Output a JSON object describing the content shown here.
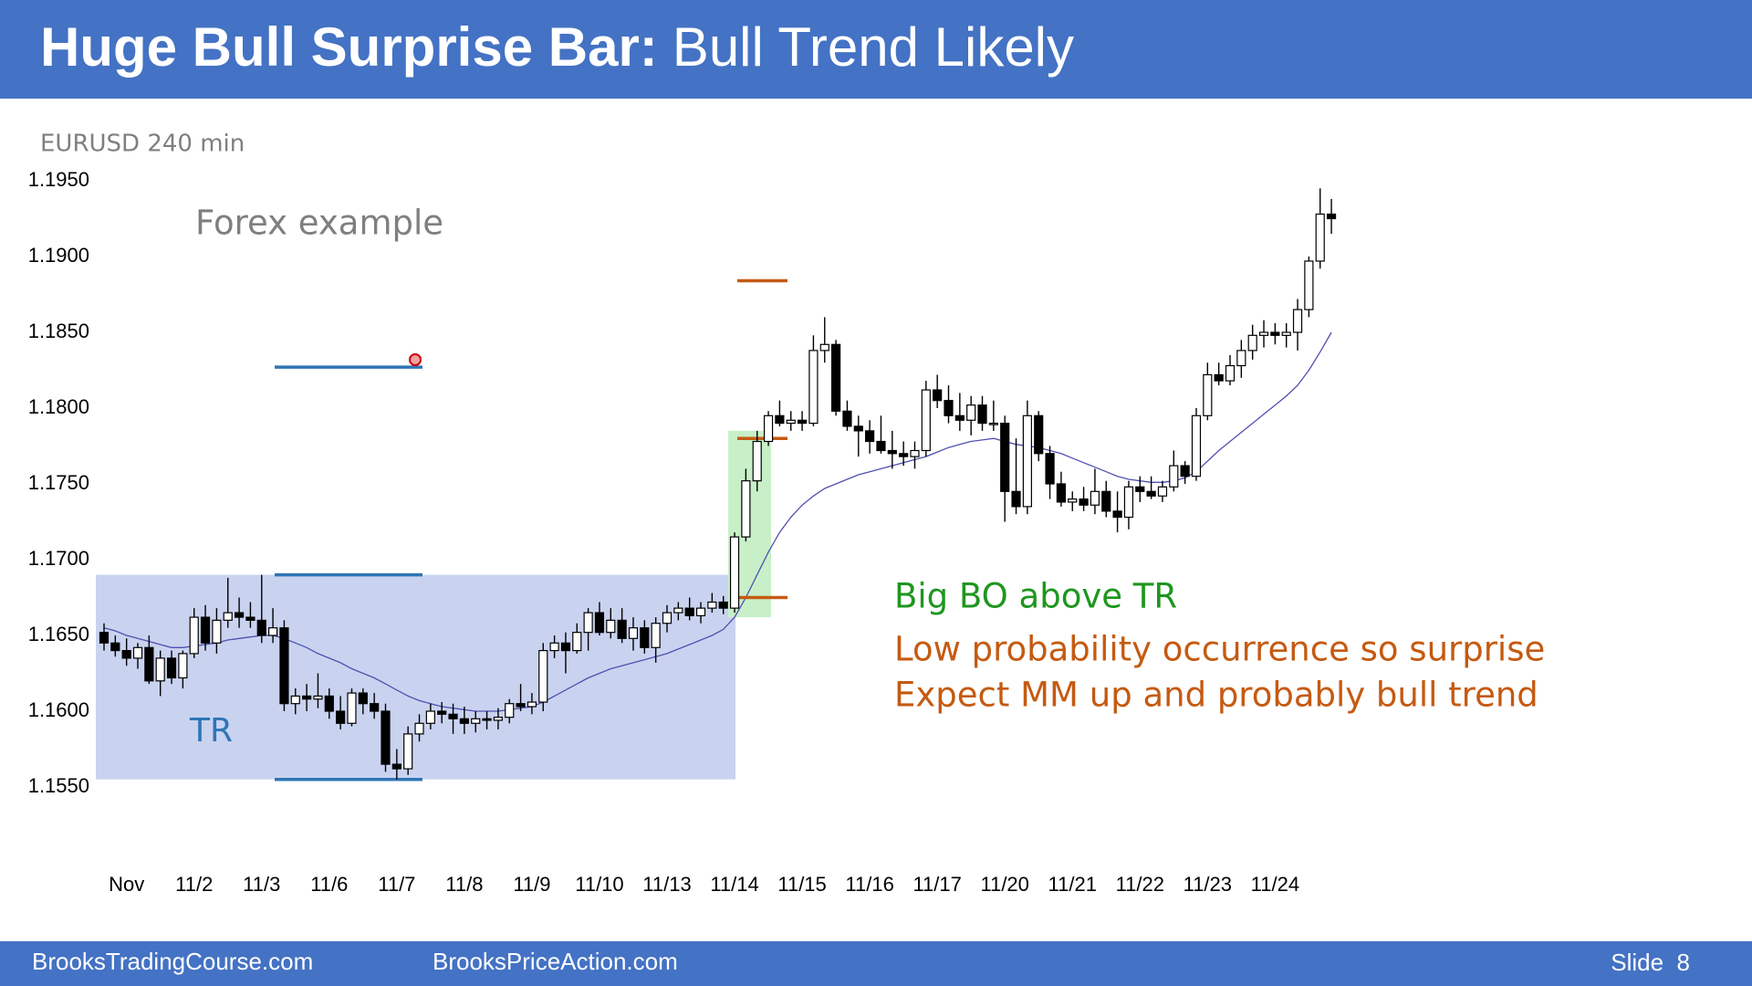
{
  "header": {
    "title_bold": "Huge Bull Surprise Bar:",
    "title_rest": "Bull Trend Likely"
  },
  "chart_data": {
    "type": "candlestick",
    "subtitle": "EURUSD 240 min",
    "categories": [
      null,
      null,
      "Nov",
      null,
      null,
      null,
      null,
      null,
      "11/2",
      null,
      null,
      null,
      null,
      null,
      "11/3",
      null,
      null,
      null,
      null,
      null,
      "11/6",
      null,
      null,
      null,
      null,
      null,
      "11/7",
      null,
      null,
      null,
      null,
      null,
      "11/8",
      null,
      null,
      null,
      null,
      null,
      "11/9",
      null,
      null,
      null,
      null,
      null,
      "11/10",
      null,
      null,
      null,
      null,
      null,
      "11/13",
      null,
      null,
      null,
      null,
      null,
      "11/14",
      null,
      null,
      null,
      null,
      null,
      "11/15",
      null,
      null,
      null,
      null,
      null,
      "11/16",
      null,
      null,
      null,
      null,
      null,
      "11/17",
      null,
      null,
      null,
      null,
      null,
      "11/20",
      null,
      null,
      null,
      null,
      null,
      "11/21",
      null,
      null,
      null,
      null,
      null,
      "11/22",
      null,
      null,
      null,
      null,
      null,
      "11/23",
      null,
      null,
      null,
      null,
      null,
      "11/24",
      null,
      null,
      null,
      null,
      null
    ],
    "open": [
      1.1652,
      1.1645,
      1.164,
      1.1635,
      1.1642,
      1.162,
      1.1635,
      1.1622,
      1.1638,
      1.1662,
      1.1645,
      1.166,
      1.1665,
      1.1662,
      1.166,
      1.165,
      1.1655,
      1.1605,
      1.161,
      1.1608,
      1.161,
      1.16,
      1.1592,
      1.1612,
      1.1605,
      1.16,
      1.1565,
      1.1562,
      1.1585,
      1.1592,
      1.16,
      1.1598,
      1.1595,
      1.1592,
      1.1595,
      1.1594,
      1.1596,
      1.1605,
      1.1603,
      1.1606,
      1.164,
      1.1645,
      1.164,
      1.1652,
      1.1665,
      1.1652,
      1.166,
      1.1648,
      1.1655,
      1.1642,
      1.1658,
      1.1665,
      1.1668,
      1.1663,
      1.1668,
      1.1672,
      1.1668,
      1.1715,
      1.1752,
      1.1778,
      1.1795,
      1.179,
      1.1792,
      1.179,
      1.1838,
      1.1842,
      1.1798,
      1.1788,
      1.1785,
      1.1778,
      1.1772,
      1.177,
      1.1768,
      1.1772,
      1.1812,
      1.1805,
      1.1795,
      1.1792,
      1.1802,
      1.179,
      1.179,
      1.1745,
      1.1735,
      1.1795,
      1.177,
      1.175,
      1.1738,
      1.174,
      1.1736,
      1.1745,
      1.1732,
      1.1728,
      1.1748,
      1.1745,
      1.1742,
      1.1748,
      1.1762,
      1.1755,
      1.1795,
      1.1822,
      1.1818,
      1.1828,
      1.1838,
      1.1848,
      1.185,
      1.1848,
      1.185,
      1.1865,
      1.1897,
      1.1928
    ],
    "high": [
      1.1658,
      1.165,
      1.1648,
      1.1645,
      1.165,
      1.164,
      1.164,
      1.164,
      1.1668,
      1.167,
      1.1668,
      1.1688,
      1.1675,
      1.1672,
      1.169,
      1.1668,
      1.166,
      1.1615,
      1.1618,
      1.1625,
      1.1615,
      1.161,
      1.1615,
      1.1615,
      1.1612,
      1.1605,
      1.1575,
      1.159,
      1.1598,
      1.1605,
      1.1606,
      1.1605,
      1.1603,
      1.16,
      1.16,
      1.1602,
      1.1608,
      1.1618,
      1.1612,
      1.1645,
      1.165,
      1.1652,
      1.1658,
      1.1668,
      1.1672,
      1.1668,
      1.1668,
      1.1662,
      1.166,
      1.1662,
      1.167,
      1.1672,
      1.1675,
      1.1672,
      1.1678,
      1.1676,
      1.1718,
      1.176,
      1.1785,
      1.1798,
      1.1805,
      1.1798,
      1.1798,
      1.1848,
      1.186,
      1.1845,
      1.1805,
      1.1795,
      1.1792,
      1.1795,
      1.1785,
      1.1778,
      1.1778,
      1.1818,
      1.1822,
      1.1815,
      1.181,
      1.1808,
      1.1808,
      1.1805,
      1.1795,
      1.178,
      1.1805,
      1.1798,
      1.1775,
      1.1758,
      1.1745,
      1.1748,
      1.176,
      1.1752,
      1.1745,
      1.1752,
      1.1755,
      1.1755,
      1.1752,
      1.1772,
      1.1765,
      1.18,
      1.183,
      1.183,
      1.1835,
      1.1845,
      1.1855,
      1.1858,
      1.1856,
      1.1856,
      1.1872,
      1.19,
      1.1945,
      1.1938
    ],
    "low": [
      1.164,
      1.1636,
      1.163,
      1.1628,
      1.1618,
      1.161,
      1.1618,
      1.1615,
      1.1635,
      1.164,
      1.1638,
      1.1655,
      1.1655,
      1.1655,
      1.1645,
      1.1645,
      1.16,
      1.1598,
      1.16,
      1.1602,
      1.1595,
      1.1588,
      1.159,
      1.1598,
      1.1595,
      1.156,
      1.1555,
      1.1558,
      1.158,
      1.1588,
      1.1592,
      1.1585,
      1.1585,
      1.1586,
      1.1588,
      1.1588,
      1.1592,
      1.16,
      1.1598,
      1.16,
      1.1635,
      1.1625,
      1.1638,
      1.164,
      1.165,
      1.1648,
      1.1645,
      1.164,
      1.1638,
      1.1632,
      1.1652,
      1.166,
      1.166,
      1.1658,
      1.1665,
      1.1664,
      1.1665,
      1.1712,
      1.1745,
      1.1775,
      1.1788,
      1.1785,
      1.1785,
      1.1788,
      1.183,
      1.1795,
      1.1785,
      1.1768,
      1.177,
      1.177,
      1.176,
      1.1762,
      1.176,
      1.1768,
      1.18,
      1.179,
      1.1785,
      1.1782,
      1.1785,
      1.1785,
      1.1725,
      1.173,
      1.173,
      1.1765,
      1.174,
      1.1735,
      1.1732,
      1.1732,
      1.173,
      1.1728,
      1.1718,
      1.172,
      1.1738,
      1.174,
      1.1738,
      1.1745,
      1.175,
      1.1752,
      1.1792,
      1.1815,
      1.1815,
      1.182,
      1.1832,
      1.184,
      1.1842,
      1.184,
      1.1838,
      1.186,
      1.1892,
      1.1915
    ],
    "close": [
      1.1645,
      1.164,
      1.1635,
      1.1642,
      1.162,
      1.1635,
      1.1622,
      1.1638,
      1.1662,
      1.1645,
      1.166,
      1.1665,
      1.1662,
      1.166,
      1.165,
      1.1655,
      1.1605,
      1.161,
      1.1608,
      1.161,
      1.16,
      1.1592,
      1.1612,
      1.1605,
      1.16,
      1.1565,
      1.1562,
      1.1585,
      1.1592,
      1.16,
      1.1598,
      1.1595,
      1.1592,
      1.1595,
      1.1594,
      1.1596,
      1.1605,
      1.1603,
      1.1606,
      1.164,
      1.1645,
      1.164,
      1.1652,
      1.1665,
      1.1652,
      1.166,
      1.1648,
      1.1655,
      1.1642,
      1.1658,
      1.1665,
      1.1668,
      1.1663,
      1.1668,
      1.1672,
      1.1668,
      1.1715,
      1.1752,
      1.1778,
      1.1795,
      1.179,
      1.1792,
      1.179,
      1.1838,
      1.1842,
      1.1798,
      1.1788,
      1.1785,
      1.1778,
      1.1772,
      1.177,
      1.1768,
      1.1772,
      1.1812,
      1.1805,
      1.1795,
      1.1792,
      1.1802,
      1.179,
      1.179,
      1.1745,
      1.1735,
      1.1795,
      1.177,
      1.175,
      1.1738,
      1.174,
      1.1736,
      1.1745,
      1.1732,
      1.1728,
      1.1748,
      1.1745,
      1.1742,
      1.1748,
      1.1762,
      1.1755,
      1.1795,
      1.1822,
      1.1818,
      1.1828,
      1.1838,
      1.1848,
      1.185,
      1.1848,
      1.185,
      1.1865,
      1.1897,
      1.1928,
      1.1925
    ],
    "up_color": "#ffffff",
    "down_color": "#000000",
    "moving_average": {
      "color": "#5050b0",
      "values": [
        1.1655,
        1.1653,
        1.165,
        1.1648,
        1.1646,
        1.1644,
        1.1642,
        1.1642,
        1.1643,
        1.1644,
        1.1645,
        1.1647,
        1.1648,
        1.1649,
        1.165,
        1.165,
        1.1648,
        1.1645,
        1.1642,
        1.1638,
        1.1635,
        1.1632,
        1.1628,
        1.1625,
        1.1622,
        1.1618,
        1.1614,
        1.161,
        1.1607,
        1.1605,
        1.1603,
        1.1602,
        1.1601,
        1.16,
        1.16,
        1.16,
        1.1601,
        1.1602,
        1.1603,
        1.1606,
        1.161,
        1.1614,
        1.1618,
        1.1622,
        1.1625,
        1.1628,
        1.163,
        1.1632,
        1.1634,
        1.1636,
        1.1638,
        1.1641,
        1.1644,
        1.1647,
        1.165,
        1.1654,
        1.1662,
        1.1675,
        1.169,
        1.1705,
        1.1718,
        1.1728,
        1.1736,
        1.1742,
        1.1747,
        1.175,
        1.1753,
        1.1756,
        1.1758,
        1.176,
        1.1762,
        1.1764,
        1.1766,
        1.1768,
        1.1771,
        1.1774,
        1.1776,
        1.1778,
        1.1779,
        1.178,
        1.1778,
        1.1776,
        1.1775,
        1.1774,
        1.1772,
        1.177,
        1.1767,
        1.1764,
        1.1761,
        1.1758,
        1.1755,
        1.1753,
        1.1752,
        1.1751,
        1.1751,
        1.1752,
        1.1754,
        1.1758,
        1.1765,
        1.1772,
        1.1778,
        1.1784,
        1.179,
        1.1796,
        1.1802,
        1.1808,
        1.1815,
        1.1825,
        1.1837,
        1.185
      ]
    },
    "ylim": [
      1.155,
      1.195
    ],
    "yticks": [
      {
        "value": 1.155,
        "label": "1.1550"
      },
      {
        "value": 1.16,
        "label": "1.1600"
      },
      {
        "value": 1.165,
        "label": "1.1650"
      },
      {
        "value": 1.17,
        "label": "1.1700"
      },
      {
        "value": 1.175,
        "label": "1.1750"
      },
      {
        "value": 1.18,
        "label": "1.1800"
      },
      {
        "value": 1.185,
        "label": "1.1850"
      },
      {
        "value": 1.19,
        "label": "1.1900"
      },
      {
        "value": 1.195,
        "label": "1.1950"
      }
    ],
    "trading_range": {
      "label": "TR",
      "top": 1.169,
      "bottom": 1.1555,
      "color": "#c9d3f0",
      "label_color": "#2e75b6"
    },
    "breakout_bar": {
      "top": 1.1785,
      "bottom": 1.1662,
      "color": "#c8f0c8"
    },
    "levels": [
      {
        "value": 1.1827,
        "color": "#2e75b6"
      },
      {
        "value": 1.169,
        "color": "#2e75b6"
      },
      {
        "value": 1.1555,
        "color": "#2e75b6"
      },
      {
        "value": 1.1884,
        "color": "#c55a11"
      },
      {
        "value": 1.178,
        "color": "#c55a11"
      },
      {
        "value": 1.1675,
        "color": "#c55a11"
      }
    ],
    "annotations": [
      {
        "text": "Forex example",
        "color": "#7f7f7f"
      },
      {
        "text": "Big BO above TR",
        "color": "#1e961e"
      },
      {
        "text": "Low probability occurrence so surprise",
        "color": "#c55a11"
      },
      {
        "text": "Expect MM up and probably bull trend",
        "color": "#c55a11"
      }
    ]
  },
  "footer": {
    "left": "BrooksTradingCourse.com",
    "middle": "BrooksPriceAction.com",
    "slide": "Slide  8"
  }
}
